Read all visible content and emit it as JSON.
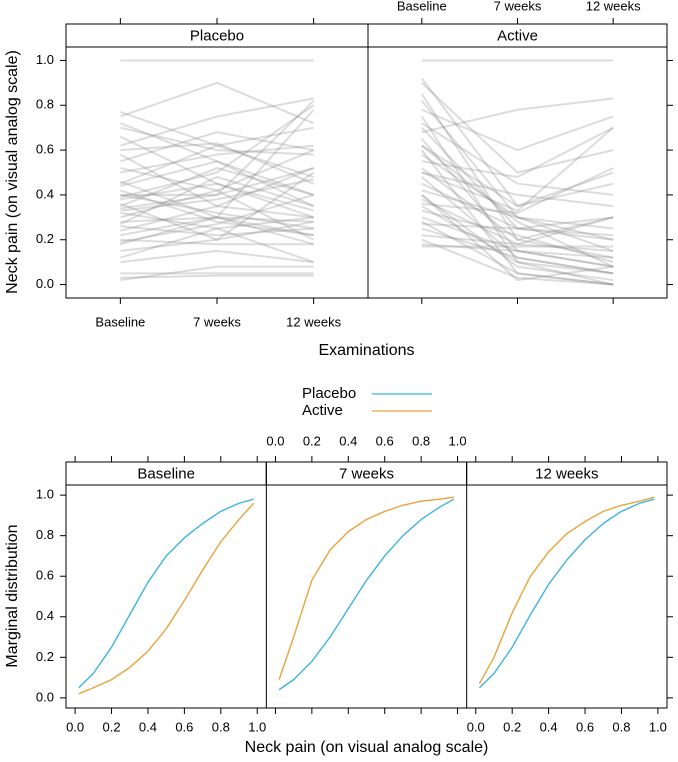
{
  "colors": {
    "placebo": "#3fb3dd",
    "active": "#e8a33c",
    "trajectory": "#8a8a8a",
    "strip": "#ffffff",
    "frame": "#000000"
  },
  "chart_data": [
    {
      "type": "line",
      "title": "",
      "xlabel": "Examinations",
      "ylabel": "Neck pain (on visual analog scale)",
      "x_tick_labels": [
        "Baseline",
        "7 weeks",
        "12 weeks"
      ],
      "y_tick_labels": [
        "0.0",
        "0.2",
        "0.4",
        "0.6",
        "0.8",
        "1.0"
      ],
      "ylim": [
        -0.06,
        1.06
      ],
      "y_ticks": [
        0,
        0.2,
        0.4,
        0.6,
        0.8,
        1.0
      ],
      "panels": [
        {
          "name": "Placebo",
          "trajectories": [
            [
              1.0,
              1.0,
              1.0
            ],
            [
              0.77,
              0.62,
              0.48
            ],
            [
              0.75,
              0.9,
              0.72
            ],
            [
              0.72,
              0.55,
              0.35
            ],
            [
              0.7,
              0.6,
              0.58
            ],
            [
              0.66,
              0.45,
              0.3
            ],
            [
              0.62,
              0.75,
              0.83
            ],
            [
              0.6,
              0.63,
              0.45
            ],
            [
              0.58,
              0.35,
              0.52
            ],
            [
              0.55,
              0.68,
              0.6
            ],
            [
              0.52,
              0.42,
              0.2
            ],
            [
              0.5,
              0.58,
              0.62
            ],
            [
              0.46,
              0.3,
              0.78
            ],
            [
              0.44,
              0.55,
              0.4
            ],
            [
              0.42,
              0.28,
              0.22
            ],
            [
              0.4,
              0.4,
              0.52
            ],
            [
              0.4,
              0.32,
              0.25
            ],
            [
              0.39,
              0.5,
              0.8
            ],
            [
              0.38,
              0.45,
              0.33
            ],
            [
              0.36,
              0.2,
              0.28
            ],
            [
              0.35,
              0.52,
              0.4
            ],
            [
              0.33,
              0.38,
              0.47
            ],
            [
              0.32,
              0.25,
              0.1
            ],
            [
              0.3,
              0.42,
              0.6
            ],
            [
              0.28,
              0.3,
              0.18
            ],
            [
              0.27,
              0.48,
              0.35
            ],
            [
              0.26,
              0.22,
              0.25
            ],
            [
              0.24,
              0.35,
              0.3
            ],
            [
              0.22,
              0.3,
              0.22
            ],
            [
              0.2,
              0.18,
              0.18
            ],
            [
              0.19,
              0.27,
              0.4
            ],
            [
              0.18,
              0.3,
              0.28
            ],
            [
              0.15,
              0.2,
              0.5
            ],
            [
              0.12,
              0.25,
              0.3
            ],
            [
              0.1,
              0.15,
              0.1
            ],
            [
              0.05,
              0.05,
              0.05
            ],
            [
              0.03,
              0.04,
              0.04
            ],
            [
              0.02,
              0.08,
              0.08
            ],
            [
              0.45,
              0.62,
              0.7
            ],
            [
              0.34,
              0.4,
              0.82
            ]
          ]
        },
        {
          "name": "Active",
          "trajectories": [
            [
              1.0,
              1.0,
              1.0
            ],
            [
              0.92,
              0.35,
              0.5
            ],
            [
              0.9,
              0.5,
              0.6
            ],
            [
              0.85,
              0.2,
              0.3
            ],
            [
              0.82,
              0.3,
              0.15
            ],
            [
              0.78,
              0.6,
              0.75
            ],
            [
              0.75,
              0.1,
              0.05
            ],
            [
              0.72,
              0.45,
              0.4
            ],
            [
              0.7,
              0.25,
              0.2
            ],
            [
              0.68,
              0.78,
              0.83
            ],
            [
              0.65,
              0.15,
              0.08
            ],
            [
              0.62,
              0.35,
              0.45
            ],
            [
              0.6,
              0.05,
              0.0
            ],
            [
              0.58,
              0.3,
              0.25
            ],
            [
              0.55,
              0.48,
              0.7
            ],
            [
              0.52,
              0.2,
              0.12
            ],
            [
              0.5,
              0.4,
              0.35
            ],
            [
              0.48,
              0.12,
              0.05
            ],
            [
              0.45,
              0.25,
              0.3
            ],
            [
              0.42,
              0.3,
              0.2
            ],
            [
              0.4,
              0.08,
              0.02
            ],
            [
              0.38,
              0.18,
              0.15
            ],
            [
              0.36,
              0.32,
              0.52
            ],
            [
              0.35,
              0.1,
              0.0
            ],
            [
              0.33,
              0.22,
              0.1
            ],
            [
              0.3,
              0.15,
              0.08
            ],
            [
              0.28,
              0.05,
              0.0
            ],
            [
              0.27,
              0.25,
              0.22
            ],
            [
              0.25,
              0.12,
              0.05
            ],
            [
              0.22,
              0.18,
              0.3
            ],
            [
              0.2,
              0.03,
              0.0
            ],
            [
              0.18,
              0.15,
              0.12
            ],
            [
              0.17,
              0.17,
              0.17
            ],
            [
              0.5,
              0.33,
              0.7
            ],
            [
              0.62,
              0.28,
              0.08
            ],
            [
              0.4,
              0.02,
              0.08
            ]
          ]
        }
      ]
    },
    {
      "type": "line",
      "title": "",
      "xlabel": "Neck pain (on visual analog scale)",
      "ylabel": "Marginal distribution",
      "legend": [
        "Placebo",
        "Active"
      ],
      "legend_position": "top-center",
      "x_tick_labels": [
        "0.0",
        "0.2",
        "0.4",
        "0.6",
        "0.8",
        "1.0"
      ],
      "y_tick_labels": [
        "0.0",
        "0.2",
        "0.4",
        "0.6",
        "0.8",
        "1.0"
      ],
      "xlim": [
        -0.05,
        1.05
      ],
      "ylim": [
        -0.05,
        1.05
      ],
      "x_ticks": [
        0,
        0.2,
        0.4,
        0.6,
        0.8,
        1.0
      ],
      "y_ticks": [
        0,
        0.2,
        0.4,
        0.6,
        0.8,
        1.0
      ],
      "panels": [
        {
          "name": "Baseline",
          "series": [
            {
              "name": "Placebo",
              "x": [
                0.02,
                0.1,
                0.2,
                0.3,
                0.4,
                0.5,
                0.6,
                0.7,
                0.8,
                0.9,
                0.98
              ],
              "values": [
                0.05,
                0.12,
                0.25,
                0.41,
                0.57,
                0.7,
                0.79,
                0.86,
                0.92,
                0.96,
                0.98
              ]
            },
            {
              "name": "Active",
              "x": [
                0.02,
                0.1,
                0.2,
                0.3,
                0.4,
                0.5,
                0.6,
                0.7,
                0.8,
                0.9,
                0.98
              ],
              "values": [
                0.02,
                0.05,
                0.09,
                0.15,
                0.23,
                0.34,
                0.48,
                0.63,
                0.77,
                0.88,
                0.96
              ]
            }
          ]
        },
        {
          "name": "7 weeks",
          "series": [
            {
              "name": "Placebo",
              "x": [
                0.02,
                0.1,
                0.2,
                0.3,
                0.4,
                0.5,
                0.6,
                0.7,
                0.8,
                0.9,
                0.98
              ],
              "values": [
                0.04,
                0.09,
                0.18,
                0.3,
                0.44,
                0.58,
                0.7,
                0.8,
                0.88,
                0.94,
                0.98
              ]
            },
            {
              "name": "Active",
              "x": [
                0.02,
                0.1,
                0.2,
                0.3,
                0.4,
                0.5,
                0.6,
                0.7,
                0.8,
                0.9,
                0.98
              ],
              "values": [
                0.09,
                0.3,
                0.58,
                0.73,
                0.82,
                0.88,
                0.92,
                0.95,
                0.97,
                0.98,
                0.99
              ]
            }
          ]
        },
        {
          "name": "12 weeks",
          "series": [
            {
              "name": "Placebo",
              "x": [
                0.02,
                0.1,
                0.2,
                0.3,
                0.4,
                0.5,
                0.6,
                0.7,
                0.8,
                0.9,
                0.98
              ],
              "values": [
                0.05,
                0.12,
                0.25,
                0.41,
                0.56,
                0.68,
                0.78,
                0.86,
                0.92,
                0.96,
                0.98
              ]
            },
            {
              "name": "Active",
              "x": [
                0.02,
                0.1,
                0.2,
                0.3,
                0.4,
                0.5,
                0.6,
                0.7,
                0.8,
                0.9,
                0.98
              ],
              "values": [
                0.07,
                0.2,
                0.42,
                0.6,
                0.72,
                0.81,
                0.87,
                0.92,
                0.95,
                0.97,
                0.99
              ]
            }
          ]
        }
      ]
    }
  ]
}
